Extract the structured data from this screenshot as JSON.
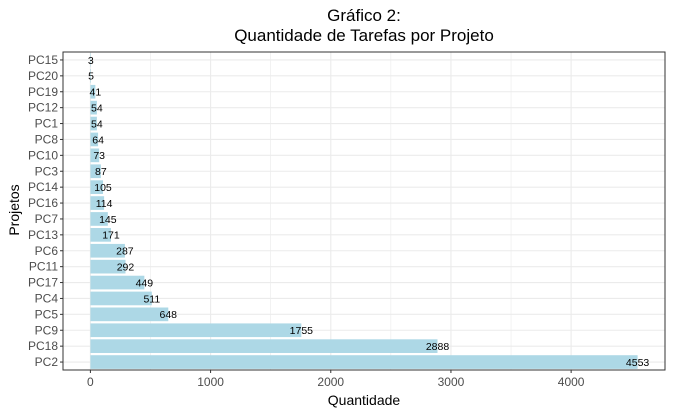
{
  "chart_data": {
    "type": "bar",
    "orientation": "horizontal",
    "title_line1": "Gráfico 2:",
    "title_line2": "Quantidade de Tarefas por Projeto",
    "xlabel": "Quantidade",
    "ylabel": "Projetos",
    "categories": [
      "PC15",
      "PC20",
      "PC19",
      "PC12",
      "PC1",
      "PC8",
      "PC10",
      "PC3",
      "PC14",
      "PC16",
      "PC7",
      "PC13",
      "PC6",
      "PC11",
      "PC17",
      "PC4",
      "PC5",
      "PC9",
      "PC18",
      "PC2"
    ],
    "values": [
      3,
      5,
      41,
      54,
      54,
      64,
      73,
      87,
      105,
      114,
      145,
      171,
      287,
      292,
      449,
      511,
      648,
      1755,
      2888,
      4553
    ],
    "value_labels": [
      "3",
      "5",
      "41",
      "54",
      "54",
      "64",
      "73",
      "87",
      "105",
      "114",
      "145",
      "171",
      "287",
      "292",
      "449",
      "511",
      "648",
      "1755",
      "2888",
      "4553"
    ],
    "xticks": [
      0,
      1000,
      2000,
      3000,
      4000
    ],
    "xtick_labels": [
      "0",
      "1000",
      "2000",
      "3000",
      "4000"
    ],
    "xlim": [
      -228,
      4781
    ],
    "grid": true,
    "bar_color": "#add8e6",
    "grid_color": "#ebebeb",
    "panel_border_color": "#333333"
  }
}
